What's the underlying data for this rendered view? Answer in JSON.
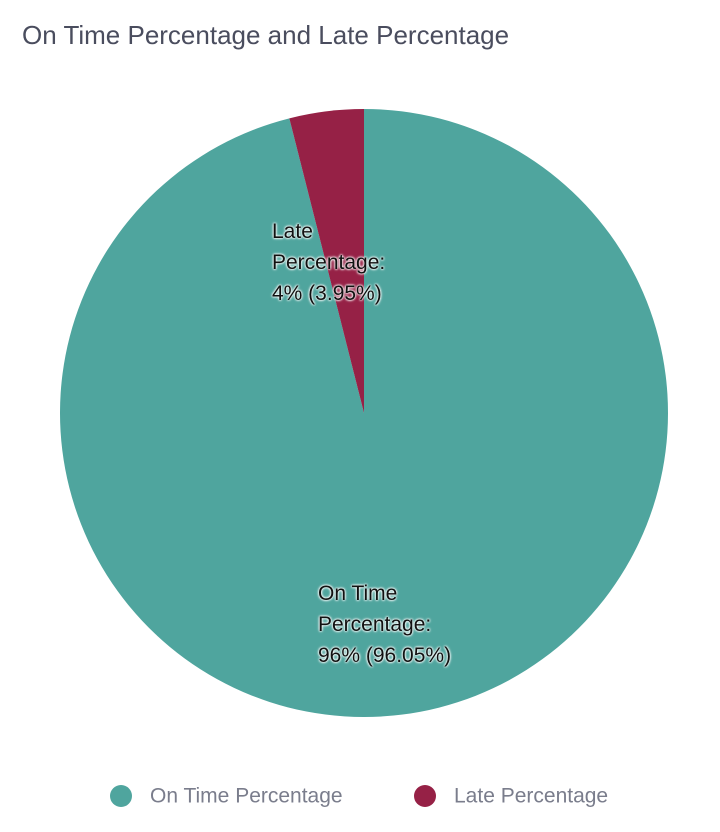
{
  "chart_data": {
    "type": "pie",
    "title": "On Time Percentage and Late Percentage",
    "categories": [
      "On Time Percentage",
      "Late Percentage"
    ],
    "values": [
      96.05,
      3.95
    ],
    "value_labels": [
      "On Time Percentage: 96% (96.05%)",
      "Late Percentage: 4% (3.95%)"
    ],
    "colors": [
      "#4fa59e",
      "#962146"
    ],
    "legend": "bottom"
  }
}
